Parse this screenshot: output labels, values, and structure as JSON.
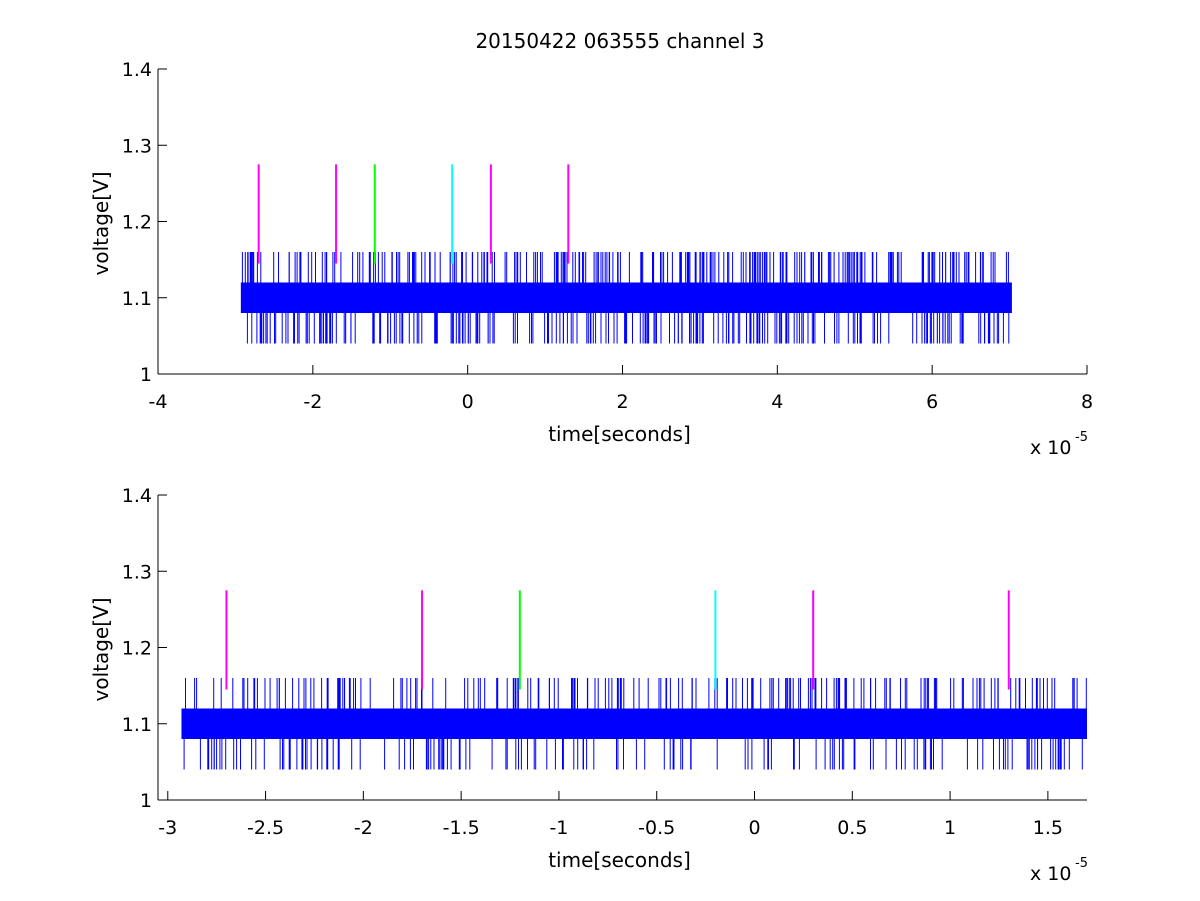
{
  "figure": {
    "title": "20150422 063555 channel 3"
  },
  "colors": {
    "signal": "#0000ff",
    "marker_magenta": "#ff00ff",
    "marker_green": "#00ff00",
    "marker_cyan": "#00ffff",
    "axes": "#000000",
    "background": "#ffffff"
  },
  "chart_data": [
    {
      "type": "line",
      "title": "20150422 063555 channel 3",
      "xlabel": "time[seconds]",
      "ylabel": "voltage[V]",
      "x_multiplier_base": "x 10",
      "x_multiplier_exp": "-5",
      "xlim": [
        -4,
        8
      ],
      "ylim": [
        1,
        1.4
      ],
      "xticks": [
        -4,
        -2,
        0,
        2,
        4,
        6,
        8
      ],
      "xtick_labels": [
        "-4",
        "-2",
        "0",
        "2",
        "4",
        "6",
        "8"
      ],
      "yticks": [
        1,
        1.1,
        1.2,
        1.3,
        1.4
      ],
      "ytick_labels": [
        "1",
        "1.1",
        "1.2",
        "1.3",
        "1.4"
      ],
      "grid": false,
      "series": [
        {
          "color": "blue",
          "description": "dense digitized trace toggling between levels",
          "x_range": [
            -2.93,
            7.03
          ],
          "levels": {
            "low_band": 1.08,
            "high_band": 1.12,
            "min": 1.04,
            "max": 1.16
          }
        }
      ],
      "markers": [
        {
          "x": -2.7,
          "color": "magenta",
          "y_range": [
            1.145,
            1.275
          ]
        },
        {
          "x": -1.7,
          "color": "magenta",
          "y_range": [
            1.145,
            1.275
          ]
        },
        {
          "x": -1.2,
          "color": "green",
          "y_range": [
            1.145,
            1.275
          ]
        },
        {
          "x": -0.2,
          "color": "cyan",
          "y_range": [
            1.145,
            1.275
          ]
        },
        {
          "x": 0.3,
          "color": "magenta",
          "y_range": [
            1.145,
            1.275
          ]
        },
        {
          "x": 1.3,
          "color": "magenta",
          "y_range": [
            1.145,
            1.275
          ]
        }
      ]
    },
    {
      "type": "line",
      "xlabel": "time[seconds]",
      "ylabel": "voltage[V]",
      "x_multiplier_base": "x 10",
      "x_multiplier_exp": "-5",
      "xlim": [
        -3.05,
        1.7
      ],
      "ylim": [
        1,
        1.4
      ],
      "xticks": [
        -3,
        -2.5,
        -2,
        -1.5,
        -1,
        -0.5,
        0,
        0.5,
        1,
        1.5
      ],
      "xtick_labels": [
        "-3",
        "-2.5",
        "-2",
        "-1.5",
        "-1",
        "-0.5",
        "0",
        "0.5",
        "1",
        "1.5"
      ],
      "yticks": [
        1,
        1.1,
        1.2,
        1.3,
        1.4
      ],
      "ytick_labels": [
        "1",
        "1.1",
        "1.2",
        "1.3",
        "1.4"
      ],
      "grid": false,
      "series": [
        {
          "color": "blue",
          "description": "zoomed view of the same trace",
          "x_range": [
            -2.93,
            1.7
          ],
          "levels": {
            "low_band": 1.08,
            "high_band": 1.12,
            "min": 1.04,
            "max": 1.16
          }
        }
      ],
      "markers": [
        {
          "x": -2.7,
          "color": "magenta",
          "y_range": [
            1.145,
            1.275
          ]
        },
        {
          "x": -1.7,
          "color": "magenta",
          "y_range": [
            1.145,
            1.275
          ]
        },
        {
          "x": -1.2,
          "color": "green",
          "y_range": [
            1.145,
            1.275
          ]
        },
        {
          "x": -0.2,
          "color": "cyan",
          "y_range": [
            1.145,
            1.275
          ]
        },
        {
          "x": 0.3,
          "color": "magenta",
          "y_range": [
            1.145,
            1.275
          ]
        },
        {
          "x": 1.3,
          "color": "magenta",
          "y_range": [
            1.145,
            1.275
          ]
        }
      ]
    }
  ]
}
